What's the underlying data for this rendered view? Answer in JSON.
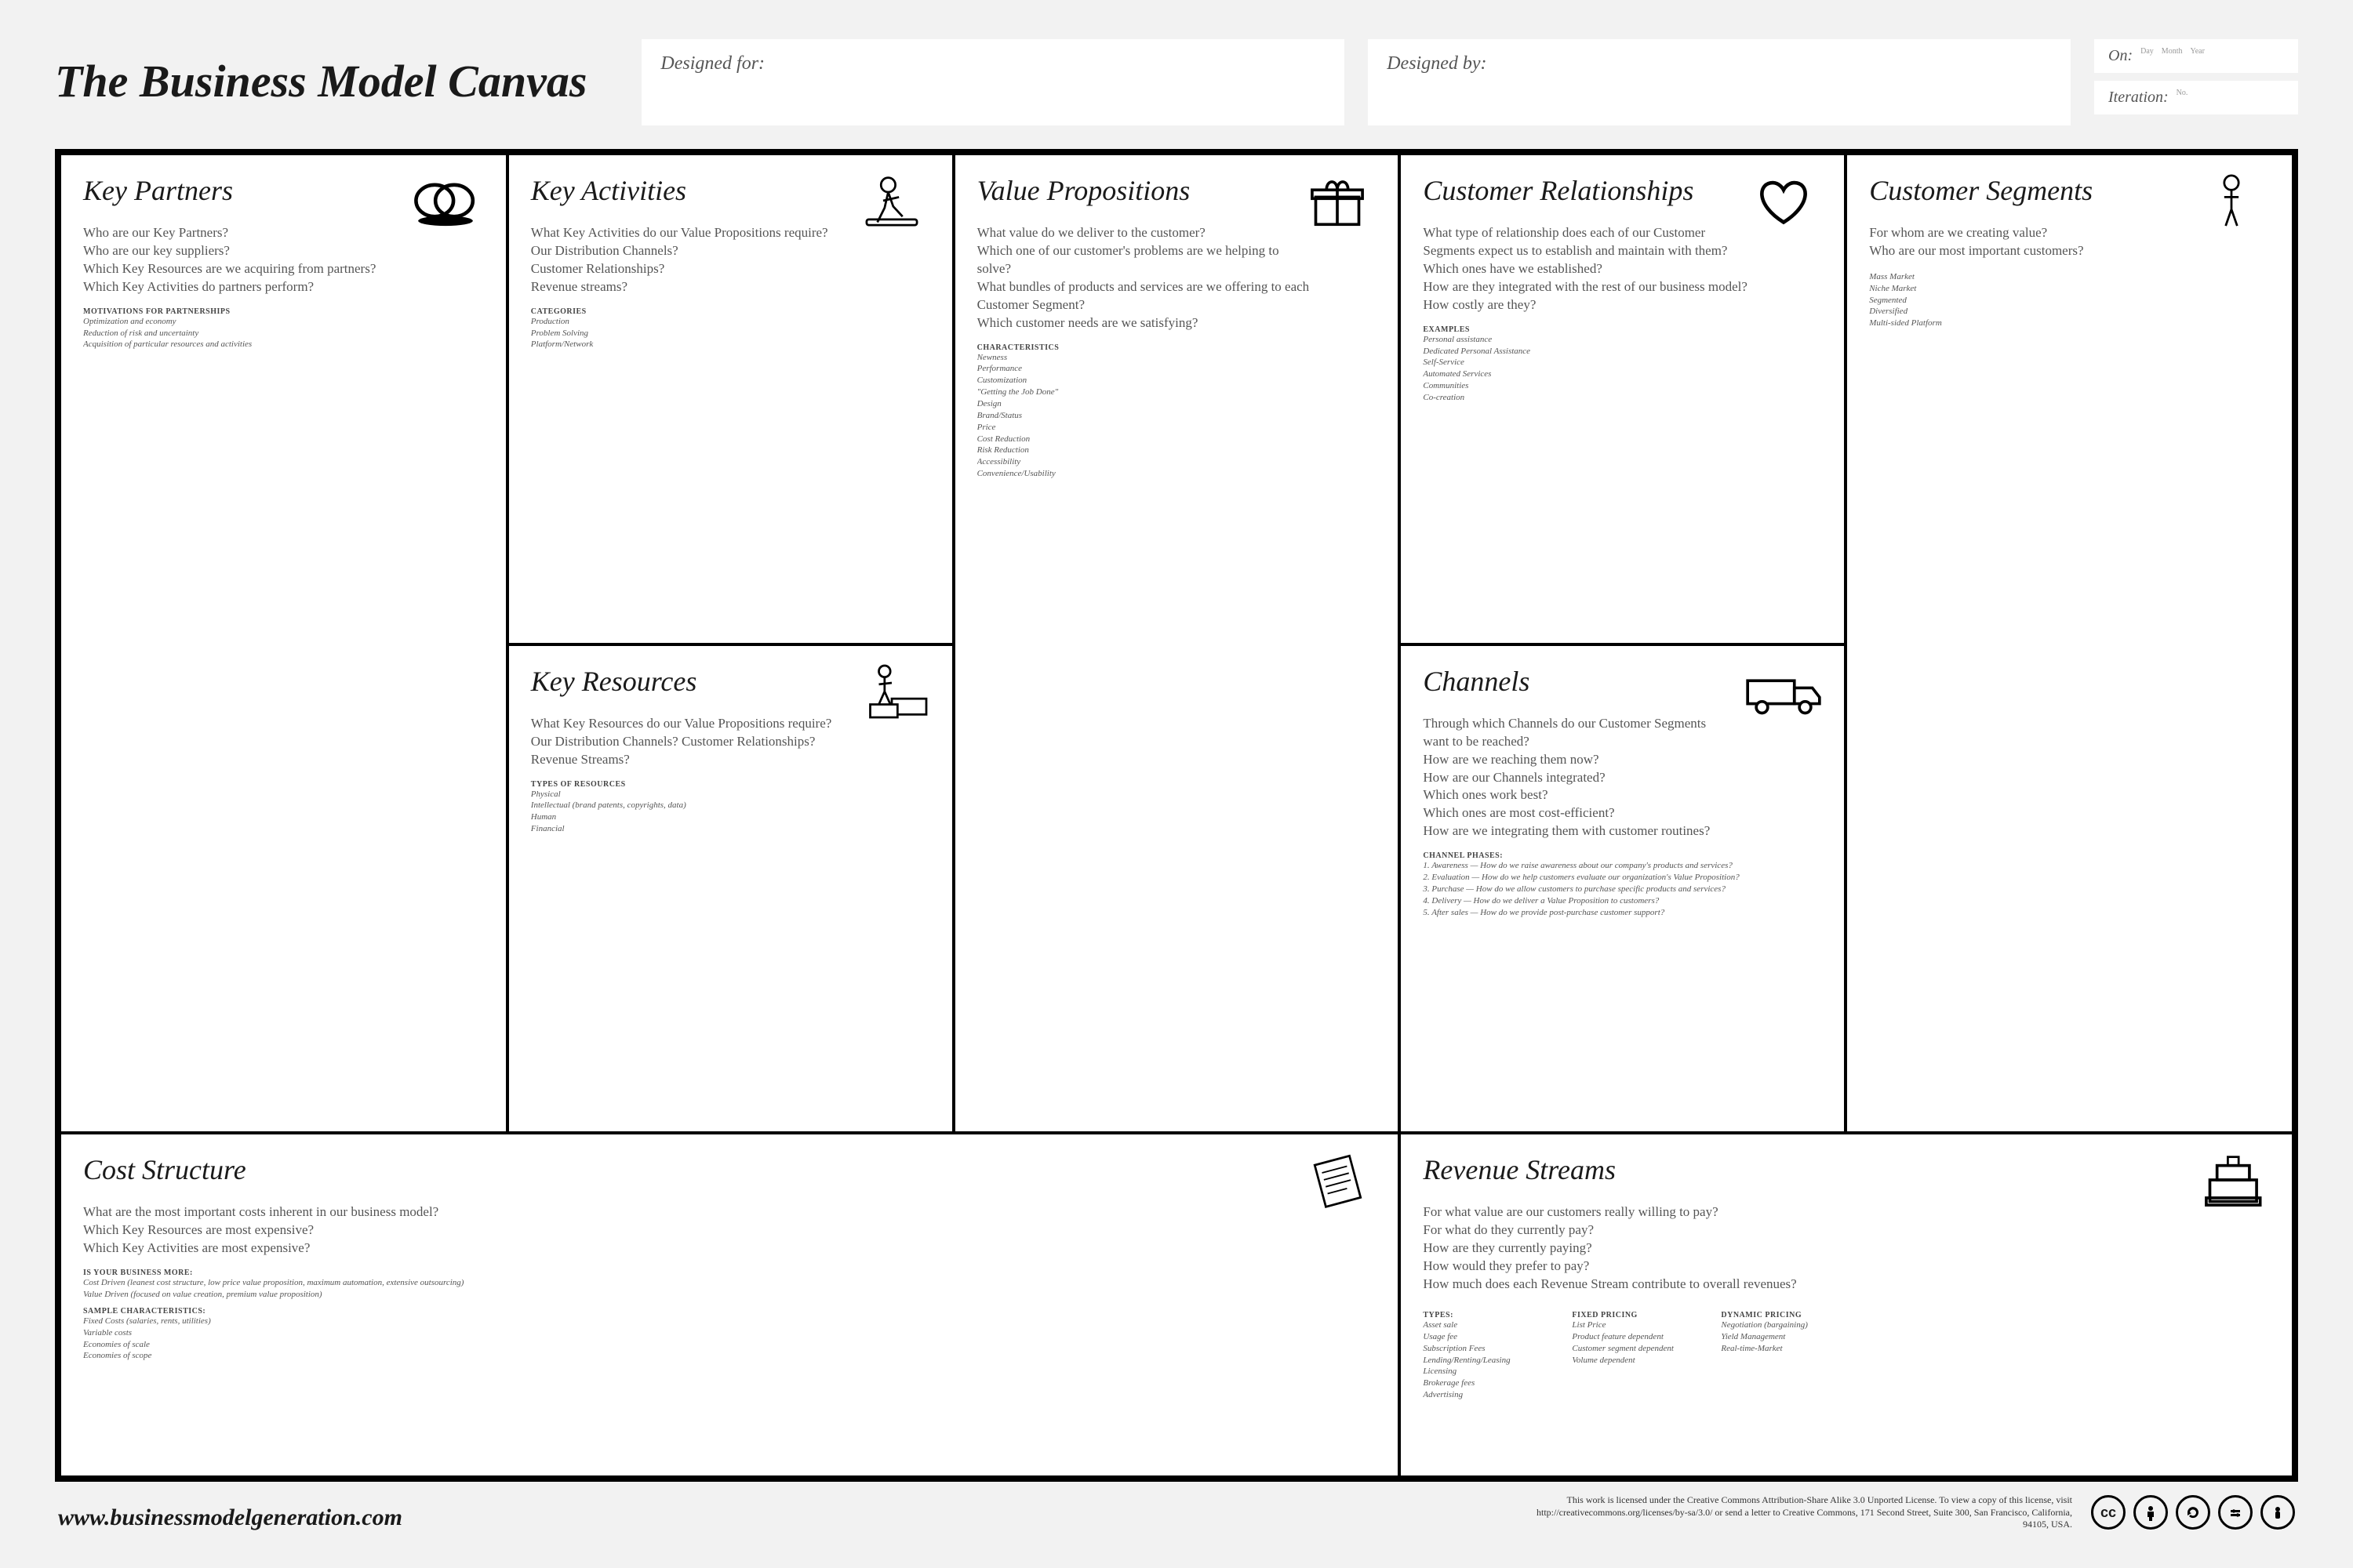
{
  "title": "The Business Model Canvas",
  "header": {
    "designed_for": "Designed for:",
    "designed_by": "Designed by:",
    "on": "On:",
    "on_hint_day": "Day",
    "on_hint_month": "Month",
    "on_hint_year": "Year",
    "iteration": "Iteration:",
    "iteration_hint": "No."
  },
  "blocks": {
    "kp": {
      "title": "Key Partners",
      "questions": [
        "Who are our Key Partners?",
        "Who are our key suppliers?",
        "Which Key Resources are we acquiring from partners?",
        "Which Key Activities do partners perform?"
      ],
      "subs": [
        {
          "head": "motivations for partnerships",
          "items": [
            "Optimization and economy",
            "Reduction of risk and uncertainty",
            "Acquisition of particular resources and activities"
          ]
        }
      ]
    },
    "ka": {
      "title": "Key Activities",
      "questions": [
        "What Key Activities do our Value Propositions require?",
        "Our Distribution Channels?",
        "Customer Relationships?",
        "Revenue streams?"
      ],
      "subs": [
        {
          "head": "categories",
          "items": [
            "Production",
            "Problem Solving",
            "Platform/Network"
          ]
        }
      ]
    },
    "kr": {
      "title": "Key Resources",
      "questions": [
        "What Key Resources do our Value Propositions require?",
        "Our Distribution Channels? Customer Relationships?",
        "Revenue Streams?"
      ],
      "subs": [
        {
          "head": "types of resources",
          "items": [
            "Physical",
            "Intellectual (brand patents, copyrights, data)",
            "Human",
            "Financial"
          ]
        }
      ]
    },
    "vp": {
      "title": "Value Propositions",
      "questions": [
        "What value do we deliver to the customer?",
        "Which one of our customer's problems are we helping to solve?",
        "What bundles of products and services are we offering to each Customer Segment?",
        "Which customer needs are we satisfying?"
      ],
      "subs": [
        {
          "head": "characteristics",
          "items": [
            "Newness",
            "Performance",
            "Customization",
            "\"Getting the Job Done\"",
            "Design",
            "Brand/Status",
            "Price",
            "Cost Reduction",
            "Risk Reduction",
            "Accessibility",
            "Convenience/Usability"
          ]
        }
      ]
    },
    "cr": {
      "title": "Customer Relationships",
      "questions": [
        "What type of relationship does each of our Customer",
        "Segments expect us to establish and maintain with them?",
        "Which ones have we established?",
        "How are they integrated with the rest of our business model?",
        "How costly are they?"
      ],
      "subs": [
        {
          "head": "examples",
          "items": [
            "Personal assistance",
            "Dedicated Personal Assistance",
            "Self-Service",
            "Automated Services",
            "Communities",
            "Co-creation"
          ]
        }
      ]
    },
    "ch": {
      "title": "Channels",
      "questions": [
        "Through which Channels do our Customer Segments",
        "want to be reached?",
        "How are we reaching them now?",
        "How are our Channels integrated?",
        "Which ones work best?",
        "Which ones are most cost-efficient?",
        "How are we integrating them with customer routines?"
      ],
      "subs": [
        {
          "head": "channel phases:",
          "items": [
            "1. Awareness — How do we raise awareness about our company's products and services?",
            "2. Evaluation — How do we help customers evaluate our organization's Value Proposition?",
            "3. Purchase — How do we allow customers to purchase specific products and services?",
            "4. Delivery — How do we deliver a Value Proposition to customers?",
            "5. After sales — How do we provide post-purchase customer support?"
          ]
        }
      ]
    },
    "cs": {
      "title": "Customer Segments",
      "questions": [
        "For whom are we creating value?",
        "Who are our most important customers?"
      ],
      "subs": [
        {
          "head": "",
          "items": [
            "Mass Market",
            "Niche Market",
            "Segmented",
            "Diversified",
            "Multi-sided Platform"
          ]
        }
      ]
    },
    "cost": {
      "title": "Cost Structure",
      "questions": [
        "What are the most important costs inherent in our business model?",
        "Which Key Resources are most expensive?",
        "Which Key Activities are most expensive?"
      ],
      "subs": [
        {
          "head": "is your business more:",
          "items": [
            "Cost Driven (leanest cost structure, low price value proposition, maximum automation, extensive outsourcing)",
            "Value Driven (focused on value creation, premium value proposition)"
          ]
        },
        {
          "head": "sample characteristics:",
          "items": [
            "Fixed Costs (salaries, rents, utilities)",
            "Variable costs",
            "Economies of scale",
            "Economies of scope"
          ]
        }
      ]
    },
    "rev": {
      "title": "Revenue Streams",
      "questions": [
        "For what value are our customers really willing to pay?",
        "For what do they currently pay?",
        "How are they currently paying?",
        "How would they prefer to pay?",
        "How much does each Revenue Stream contribute to overall revenues?"
      ],
      "cols": [
        {
          "head": "types:",
          "items": [
            "Asset sale",
            "Usage fee",
            "Subscription Fees",
            "Lending/Renting/Leasing",
            "Licensing",
            "Brokerage fees",
            "Advertising"
          ]
        },
        {
          "head": "fixed pricing",
          "items": [
            "List Price",
            "Product feature dependent",
            "Customer segment dependent",
            "Volume dependent"
          ]
        },
        {
          "head": "dynamic pricing",
          "items": [
            "Negotiation (bargaining)",
            "Yield Management",
            "Real-time-Market"
          ]
        }
      ]
    }
  },
  "footer": {
    "site": "www.businessmodelgeneration.com",
    "license": "This work is licensed under the Creative Commons Attribution-Share Alike 3.0 Unported License. To view a copy of this license, visit http://creativecommons.org/licenses/by-sa/3.0/ or send a letter to Creative Commons, 171 Second Street, Suite 300, San Francisco, California, 94105, USA."
  },
  "colors": {
    "bg": "#f2f2f2",
    "panel": "#ffffff",
    "border": "#000000",
    "text": "#1a1a1a",
    "muted": "#555555"
  }
}
